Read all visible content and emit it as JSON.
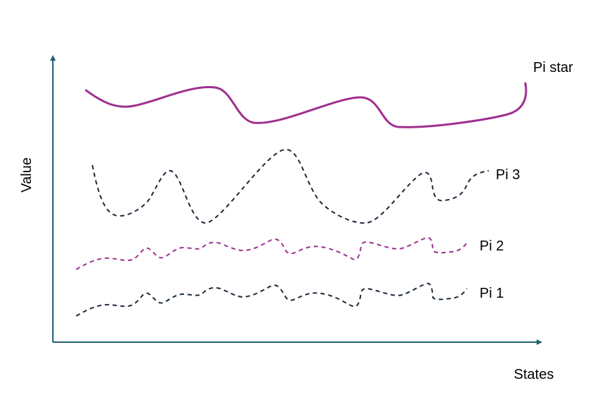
{
  "axes": {
    "y_label": "Value",
    "x_label": "States",
    "color": "#1f5f73"
  },
  "curves": [
    {
      "id": "pi-star",
      "label": "Pi star",
      "style": "solid",
      "color": "#a0308f"
    },
    {
      "id": "pi-3",
      "label": "Pi 3",
      "style": "dashed",
      "color": "#1b2a3a"
    },
    {
      "id": "pi-2",
      "label": "Pi 2",
      "style": "dashed",
      "color": "#a0308f"
    },
    {
      "id": "pi-1",
      "label": "Pi 1",
      "style": "dashed",
      "color": "#1b2a3a"
    }
  ]
}
